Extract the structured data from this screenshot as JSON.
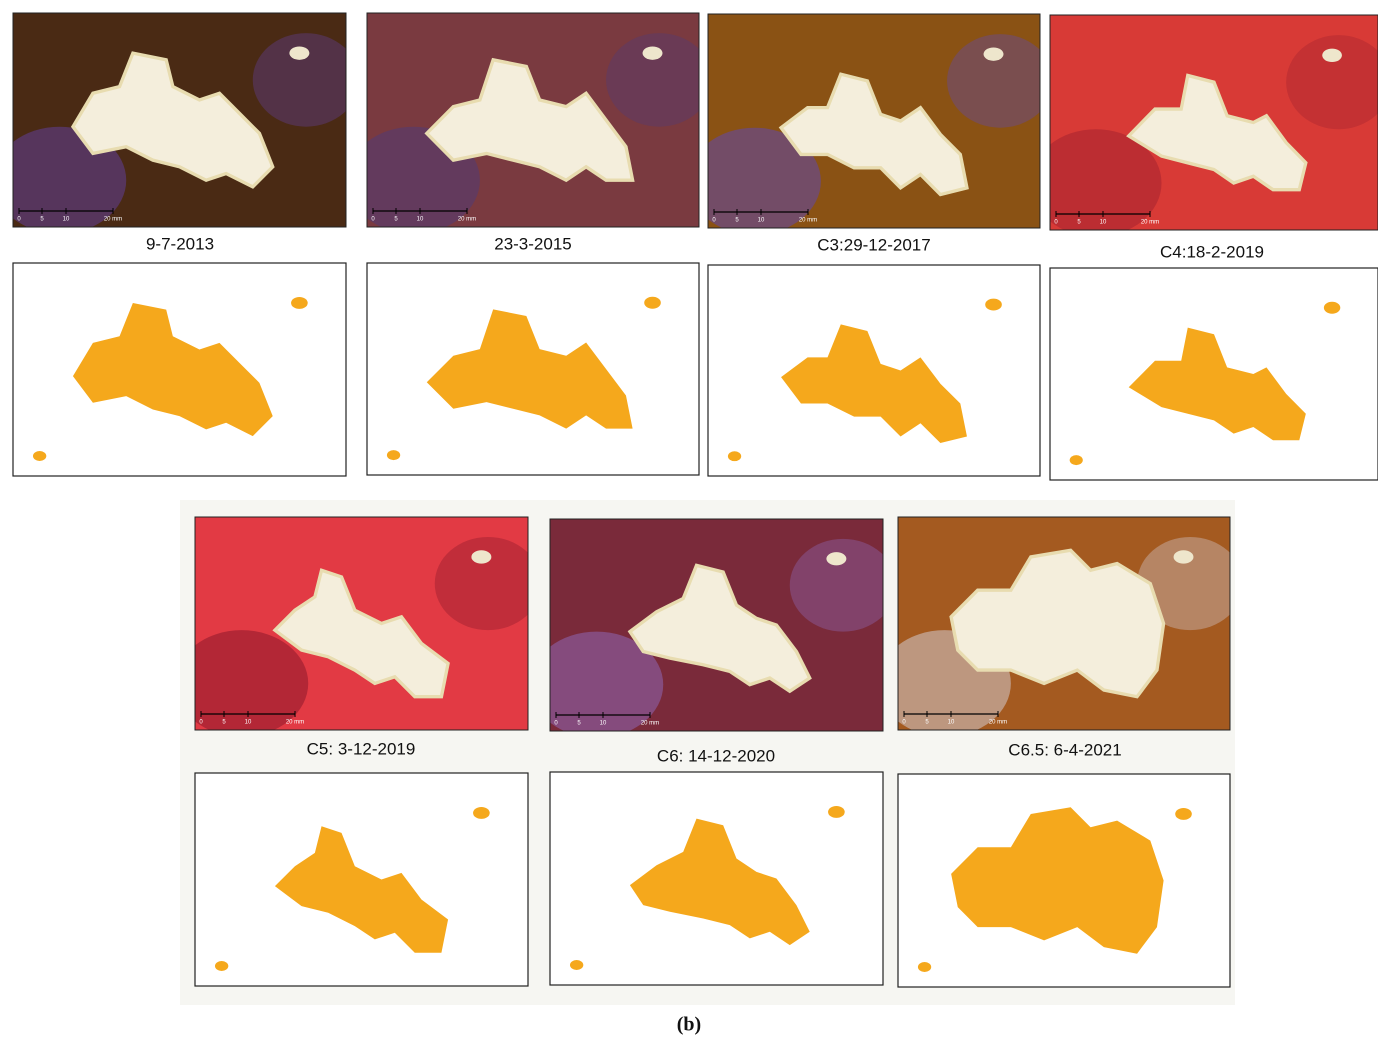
{
  "panels": [
    {
      "label": "9-7-2013"
    },
    {
      "label": "23-3-2015"
    },
    {
      "label": "C3:29-12-2017"
    },
    {
      "label": "C4:18-2-2019"
    },
    {
      "label": "C5: 3-12-2019"
    },
    {
      "label": "C6: 14-12-2020"
    },
    {
      "label": "C6.5: 6-4-2021"
    }
  ],
  "scale_bar": [
    "0",
    "5",
    "10",
    "20 mm"
  ],
  "caption": "(b)"
}
